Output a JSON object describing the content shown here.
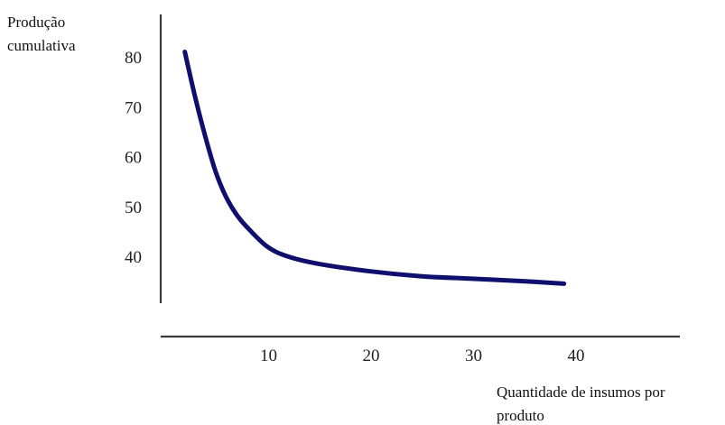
{
  "chart_data": {
    "type": "line",
    "title": "",
    "ylabel_lines": [
      "Produção",
      "cumulativa"
    ],
    "xlabel_lines": [
      "Quantidade de insumos por",
      "produto"
    ],
    "x_ticks": [
      10,
      20,
      30,
      40
    ],
    "y_ticks": [
      40,
      50,
      60,
      70,
      80
    ],
    "grid": false,
    "legend": "none",
    "series": [
      {
        "color": "#0f0f6e",
        "x": [
          2,
          3,
          4,
          5,
          6,
          7,
          8,
          10,
          12,
          15,
          20,
          25,
          30,
          35,
          39
        ],
        "y": [
          81,
          72,
          64,
          57,
          52,
          48.5,
          46,
          42,
          40,
          38.5,
          37,
          36,
          35.5,
          35,
          34.5
        ]
      }
    ]
  }
}
